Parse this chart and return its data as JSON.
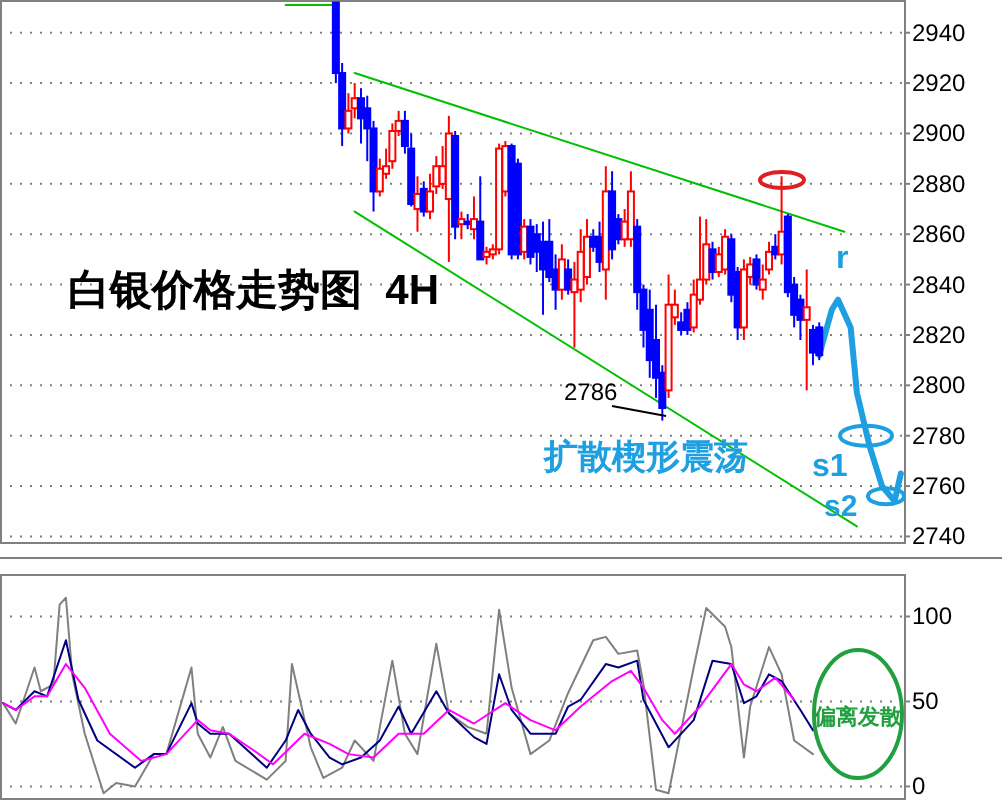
{
  "chart_data": [
    {
      "type": "candlestick",
      "title": "白银价格走势图  4H",
      "categories": [
        null,
        null,
        null,
        null,
        null,
        null,
        null,
        null,
        null,
        null,
        null,
        null,
        null,
        null,
        null,
        null,
        null,
        null,
        null,
        null,
        null,
        null,
        null,
        null,
        null,
        null,
        null,
        null,
        null,
        null,
        null,
        null,
        null,
        null,
        null,
        null,
        null,
        null,
        null,
        null,
        null,
        null,
        null,
        null,
        null,
        null,
        null,
        null,
        null,
        null,
        null,
        null,
        null,
        null,
        null,
        null,
        null,
        null,
        null,
        null,
        null,
        null,
        null,
        null,
        null,
        null,
        null,
        null,
        null,
        null,
        null,
        null,
        null,
        null,
        null,
        null,
        null,
        null,
        null,
        null,
        null,
        null,
        null,
        null,
        null,
        null,
        null,
        null,
        null,
        null,
        null,
        null,
        null,
        null,
        null,
        null,
        null,
        null,
        null,
        null,
        null,
        null,
        null,
        null,
        null,
        null,
        null,
        null,
        null,
        null,
        null,
        null,
        null,
        null,
        null,
        null,
        null,
        null,
        null,
        null,
        null,
        null,
        null,
        null,
        null,
        null,
        null,
        null,
        null,
        null,
        null,
        null,
        null,
        null,
        null,
        null,
        null,
        null,
        null,
        null,
        null,
        null,
        null,
        null
      ],
      "series": [
        {
          "ohlc": [
            null,
            null,
            null,
            null,
            null,
            null,
            null,
            null,
            null,
            null,
            null,
            null,
            null,
            null,
            null,
            null,
            null,
            null,
            null,
            null,
            null,
            null,
            null,
            null,
            null,
            null,
            null,
            null,
            null,
            null,
            null,
            null,
            null,
            null,
            null,
            null,
            null,
            null,
            null,
            null,
            null,
            null,
            null,
            null,
            null,
            null,
            null,
            null,
            null,
            null,
            null,
            null,
            null,
            [
              2952,
              2952,
              2920,
              2924
            ],
            [
              2924,
              2928,
              2895,
              2902
            ],
            [
              2902,
              2916,
              2900,
              2909
            ],
            [
              2910,
              2920,
              2906,
              2914
            ],
            [
              2914,
              2918,
              2896,
              2906
            ],
            [
              2910,
              2915,
              2889,
              2902
            ],
            [
              2902,
              2905,
              2869,
              2877
            ],
            [
              2877,
              2890,
              2875,
              2886
            ],
            [
              2884,
              2894,
              2882,
              2887
            ],
            [
              2889,
              2904,
              2886,
              2901
            ],
            [
              2901,
              2909,
              2899,
              2905
            ],
            [
              2905,
              2909,
              2892,
              2895
            ],
            [
              2894,
              2900,
              2871,
              2872
            ],
            [
              2870,
              2883,
              2861,
              2876
            ],
            [
              2878,
              2881,
              2867,
              2869
            ],
            [
              2869,
              2884,
              2866,
              2877
            ],
            [
              2879,
              2891,
              2876,
              2887
            ],
            [
              2880,
              2895,
              2878,
              2887
            ],
            [
              2874,
              2907,
              2849,
              2900
            ],
            [
              2899,
              2901,
              2858,
              2863
            ],
            [
              2864,
              2869,
              2858,
              2866
            ],
            [
              2865,
              2868,
              2862,
              2864
            ],
            [
              2862,
              2875,
              2858,
              2866
            ],
            [
              2865,
              2883,
              2850,
              2850
            ],
            [
              2851,
              2855,
              2848,
              2853
            ],
            [
              2852,
              2856,
              2850,
              2854
            ],
            [
              2854,
              2896,
              2852,
              2894
            ],
            [
              2877,
              2897,
              2875,
              2895
            ],
            [
              2895,
              2896,
              2850,
              2852
            ],
            [
              2888,
              2890,
              2850,
              2852
            ],
            [
              2853,
              2866,
              2850,
              2863
            ],
            [
              2863,
              2866,
              2848,
              2851
            ],
            [
              2860,
              2864,
              2845,
              2853
            ],
            [
              2857,
              2865,
              2828,
              2846
            ],
            [
              2857,
              2866,
              2841,
              2843
            ],
            [
              2846,
              2852,
              2830,
              2838
            ],
            [
              2838,
              2856,
              2834,
              2850
            ],
            [
              2846,
              2850,
              2836,
              2838
            ],
            [
              2837,
              2849,
              2815,
              2842
            ],
            [
              2838,
              2862,
              2833,
              2853
            ],
            [
              2843,
              2866,
              2840,
              2859
            ],
            [
              2859,
              2862,
              2853,
              2855
            ],
            [
              2859,
              2865,
              2845,
              2849
            ],
            [
              2846,
              2887,
              2834,
              2877
            ],
            [
              2877,
              2885,
              2850,
              2854
            ],
            [
              2866,
              2868,
              2856,
              2858
            ],
            [
              2858,
              2870,
              2855,
              2865
            ],
            [
              2858,
              2885,
              2855,
              2877
            ],
            [
              2863,
              2866,
              2830,
              2837
            ],
            [
              2838,
              2840,
              2815,
              2822
            ],
            [
              2830,
              2838,
              2803,
              2810
            ],
            [
              2818,
              2832,
              2795,
              2803
            ],
            [
              2805,
              2808,
              2786,
              2791
            ],
            [
              2798,
              2844,
              2795,
              2832
            ],
            [
              2827,
              2838,
              2824,
              2832
            ],
            [
              2825,
              2829,
              2820,
              2822
            ],
            [
              2830,
              2833,
              2820,
              2822
            ],
            [
              2823,
              2842,
              2821,
              2836
            ],
            [
              2834,
              2867,
              2832,
              2842
            ],
            [
              2842,
              2866,
              2840,
              2856
            ],
            [
              2854,
              2857,
              2842,
              2845
            ],
            [
              2845,
              2855,
              2843,
              2852
            ],
            [
              2846,
              2862,
              2844,
              2859
            ],
            [
              2858,
              2860,
              2833,
              2836
            ],
            [
              2845,
              2847,
              2818,
              2823
            ],
            [
              2823,
              2850,
              2818,
              2846
            ],
            [
              2843,
              2851,
              2840,
              2848
            ],
            [
              2850,
              2852,
              2838,
              2840
            ],
            [
              2838,
              2848,
              2834,
              2842
            ],
            [
              2846,
              2857,
              2844,
              2853
            ],
            [
              2855,
              2860,
              2850,
              2852
            ],
            [
              2852,
              2883,
              2848,
              2861
            ],
            [
              2867,
              2868,
              2835,
              2837
            ],
            [
              2840,
              2843,
              2823,
              2828
            ],
            [
              2834,
              2836,
              2818,
              2826
            ],
            [
              2826,
              2846,
              2798,
              2831
            ],
            [
              2822,
              2824,
              2808,
              2813
            ],
            [
              2823,
              2825,
              2810,
              2812
            ],
            null,
            null,
            null,
            null,
            null,
            null,
            null,
            null,
            null,
            null,
            null,
            null,
            null
          ],
          "colors": [
            null,
            null,
            null,
            null,
            null,
            null,
            null,
            null,
            null,
            null,
            null,
            null,
            null,
            null,
            null,
            null,
            null,
            null,
            null,
            null,
            null,
            null,
            null,
            null,
            null,
            null,
            null,
            null,
            null,
            null,
            null,
            null,
            null,
            null,
            null,
            null,
            null,
            null,
            null,
            null,
            null,
            null,
            null,
            null,
            null,
            null,
            null,
            null,
            null,
            null,
            null,
            null,
            null,
            "#0000ff",
            "#0000ff",
            "#ff0000",
            "#ff0000",
            "#0000ff",
            "#0000ff",
            "#0000ff",
            "#ff0000",
            "#ff0000",
            "#ff0000",
            "#ff0000",
            "#0000ff",
            "#0000ff",
            "#ff0000",
            "#0000ff",
            "#ff0000",
            "#ff0000",
            "#ff0000",
            "#ff0000",
            "#0000ff",
            "#ff0000",
            "#0000ff",
            "#ff0000",
            "#0000ff",
            "#ff0000",
            "#ff0000",
            "#ff0000",
            "#ff0000",
            "#0000ff",
            "#0000ff",
            "#ff0000",
            "#0000ff",
            "#0000ff",
            "#0000ff",
            "#0000ff",
            "#0000ff",
            "#ff0000",
            "#0000ff",
            "#ff0000",
            "#ff0000",
            "#ff0000",
            "#0000ff",
            "#0000ff",
            "#ff0000",
            "#0000ff",
            "#0000ff",
            "#ff0000",
            "#ff0000",
            "#0000ff",
            "#0000ff",
            "#0000ff",
            "#0000ff",
            "#0000ff",
            "#ff0000",
            "#ff0000",
            "#0000ff",
            "#0000ff",
            "#ff0000",
            "#ff0000",
            "#ff0000",
            "#0000ff",
            "#ff0000",
            "#ff0000",
            "#0000ff",
            "#0000ff",
            "#ff0000",
            "#ff0000",
            "#0000ff",
            "#ff0000",
            "#ff0000",
            "#0000ff",
            "#ff0000",
            "#0000ff",
            "#0000ff",
            "#0000ff",
            "#ff0000",
            "#0000ff",
            "#0000ff",
            null,
            null,
            null,
            null,
            null,
            null,
            null,
            null,
            null,
            null,
            null,
            null,
            null
          ]
        },
        {
          "type": "line",
          "color": "#00c000",
          "values": [
            null,
            null,
            null,
            null,
            null,
            null,
            null,
            null,
            null,
            null,
            null,
            null,
            null,
            null,
            null,
            null,
            null,
            null,
            null,
            null,
            null,
            null,
            null,
            null,
            null,
            null,
            null,
            null,
            null,
            null,
            null,
            null,
            null,
            null,
            null,
            null,
            null,
            null,
            null,
            null,
            null,
            null,
            null,
            null,
            null,
            null,
            null,
            null,
            null,
            null,
            null,
            null,
            null,
            null,
            null,
            null,
            2924,
            null,
            null,
            null,
            null,
            null,
            null,
            null,
            null,
            null,
            null,
            null,
            null,
            null,
            null,
            null,
            null,
            null,
            null,
            null,
            null,
            null,
            null,
            null,
            null,
            null,
            null,
            null,
            null,
            null,
            null,
            null,
            null,
            null,
            null,
            null,
            null,
            null,
            null,
            null,
            null,
            null,
            null,
            null,
            null,
            null,
            null,
            null,
            null,
            null,
            null,
            null,
            null,
            null,
            null,
            null,
            null,
            null,
            null,
            null,
            null,
            null,
            null,
            null,
            null,
            null,
            null,
            null,
            null,
            null,
            null,
            null,
            null,
            null,
            null,
            null,
            null,
            null,
            2861,
            null,
            null,
            null,
            null,
            null,
            null,
            null,
            null,
            null
          ]
        },
        {
          "type": "line",
          "color": "#00c000",
          "values": [
            null,
            null,
            null,
            null,
            null,
            null,
            null,
            null,
            null,
            null,
            null,
            null,
            null,
            null,
            null,
            null,
            null,
            null,
            null,
            null,
            null,
            null,
            null,
            null,
            null,
            null,
            null,
            null,
            null,
            null,
            null,
            null,
            null,
            null,
            null,
            null,
            null,
            null,
            null,
            null,
            null,
            null,
            null,
            null,
            null,
            null,
            null,
            null,
            null,
            null,
            null,
            null,
            null,
            null,
            null,
            null,
            2869,
            null,
            null,
            null,
            null,
            null,
            null,
            null,
            null,
            null,
            null,
            null,
            null,
            null,
            null,
            null,
            null,
            null,
            null,
            null,
            null,
            null,
            null,
            null,
            null,
            null,
            null,
            null,
            null,
            null,
            null,
            null,
            null,
            null,
            null,
            null,
            null,
            null,
            null,
            null,
            null,
            null,
            null,
            null,
            null,
            null,
            null,
            null,
            null,
            null,
            null,
            null,
            null,
            null,
            null,
            null,
            null,
            null,
            null,
            null,
            null,
            null,
            null,
            null,
            null,
            null,
            null,
            null,
            null,
            null,
            null,
            null,
            null,
            null,
            null,
            null,
            null,
            null,
            null,
            null,
            2744,
            null,
            null,
            null,
            null,
            null,
            null,
            null
          ]
        },
        {
          "type": "line",
          "color": "#00c000",
          "values": [
            null,
            null,
            null,
            null,
            null,
            null,
            null,
            null,
            null,
            null,
            null,
            null,
            null,
            null,
            null,
            null,
            null,
            null,
            null,
            null,
            null,
            null,
            null,
            null,
            null,
            null,
            null,
            null,
            null,
            null,
            null,
            null,
            null,
            null,
            null,
            null,
            null,
            null,
            null,
            null,
            null,
            null,
            null,
            null,
            null,
            2951,
            null,
            null,
            null,
            null,
            null,
            null,
            null,
            2951,
            null,
            null,
            null,
            null,
            null,
            null,
            null,
            null,
            null,
            null,
            null,
            null,
            null,
            null,
            null,
            null,
            null,
            null,
            null,
            null,
            null,
            null,
            null,
            null,
            null,
            null,
            null,
            null,
            null,
            null,
            null,
            null,
            null,
            null,
            null,
            null,
            null,
            null,
            null,
            null,
            null,
            null,
            null,
            null,
            null,
            null,
            null,
            null,
            null,
            null,
            null,
            null,
            null,
            null,
            null,
            null,
            null,
            null,
            null,
            null,
            null,
            null,
            null,
            null,
            null,
            null,
            null,
            null,
            null,
            null,
            null,
            null,
            null,
            null,
            null,
            null,
            null,
            null,
            null,
            null,
            null,
            null,
            null,
            null,
            null,
            null,
            null,
            null,
            null,
            null
          ]
        },
        {
          "type": "line",
          "color": "#1e9fe0",
          "values": [
            null,
            null,
            null,
            null,
            null,
            null,
            null,
            null,
            null,
            null,
            null,
            null,
            null,
            null,
            null,
            null,
            null,
            null,
            null,
            null,
            null,
            null,
            null,
            null,
            null,
            null,
            null,
            null,
            null,
            null,
            null,
            null,
            null,
            null,
            null,
            null,
            null,
            null,
            null,
            null,
            null,
            null,
            null,
            null,
            null,
            null,
            null,
            null,
            null,
            null,
            null,
            null,
            null,
            null,
            null,
            null,
            null,
            null,
            null,
            null,
            null,
            null,
            null,
            null,
            null,
            null,
            null,
            null,
            null,
            null,
            null,
            null,
            null,
            null,
            null,
            null,
            null,
            null,
            null,
            null,
            null,
            null,
            null,
            null,
            null,
            null,
            null,
            null,
            null,
            null,
            null,
            null,
            null,
            null,
            null,
            null,
            null,
            null,
            null,
            null,
            null,
            null,
            null,
            null,
            null,
            null,
            null,
            null,
            null,
            null,
            null,
            null,
            null,
            null,
            null,
            null,
            null,
            null,
            null,
            null,
            null,
            null,
            null,
            null,
            null,
            null,
            null,
            null,
            null,
            null,
            2812,
            null,
            2830,
            2834,
            null,
            2823,
            2797,
            null,
            2776,
            null,
            2760,
            null,
            2754,
            2765
          ]
        }
      ],
      "ylim": [
        2737,
        2953
      ],
      "yticks": [
        2740,
        2760,
        2780,
        2800,
        2820,
        2840,
        2860,
        2880,
        2900,
        2920,
        2940
      ],
      "grid": "y",
      "tick_labels": "y",
      "annotations": [
        "2786",
        "扩散楔形震荡",
        "r",
        "s1",
        "s2"
      ]
    },
    {
      "type": "line",
      "categories": [
        null,
        null,
        null,
        null,
        null,
        null,
        null,
        null,
        null,
        null,
        null,
        null,
        null,
        null,
        null,
        null,
        null,
        null,
        null,
        null,
        null,
        null,
        null,
        null,
        null,
        null,
        null,
        null,
        null,
        null,
        null,
        null,
        null,
        null,
        null,
        null,
        null,
        null,
        null,
        null,
        null,
        null,
        null,
        null,
        null,
        null,
        null,
        null,
        null,
        null,
        null,
        null,
        null,
        null,
        null,
        null,
        null,
        null,
        null,
        null,
        null,
        null,
        null,
        null,
        null,
        null,
        null,
        null,
        null,
        null,
        null,
        null,
        null,
        null,
        null,
        null,
        null,
        null,
        null,
        null,
        null,
        null,
        null,
        null,
        null,
        null,
        null,
        null,
        null,
        null,
        null,
        null,
        null,
        null,
        null,
        null,
        null,
        null,
        null,
        null,
        null,
        null,
        null,
        null,
        null,
        null,
        null,
        null,
        null,
        null,
        null,
        null,
        null,
        null,
        null,
        null,
        null,
        null,
        null,
        null,
        null,
        null,
        null,
        null,
        null,
        null,
        null,
        null,
        null,
        null,
        null,
        null,
        null,
        null,
        null,
        null,
        null,
        null,
        null,
        null,
        null,
        null,
        null,
        null
      ],
      "series": [
        {
          "color": "#808080",
          "values": [
            49,
            null,
            37,
            null,
            null,
            70,
            56,
            null,
            60,
            107,
            111,
            66,
            null,
            31,
            null,
            null,
            -4,
            null,
            2,
            null,
            null,
            0,
            null,
            null,
            19,
            null,
            19,
            null,
            null,
            null,
            70,
            31,
            null,
            17,
            null,
            35,
            null,
            15,
            null,
            null,
            null,
            null,
            4,
            null,
            null,
            15,
            72,
            null,
            null,
            23,
            null,
            5,
            null,
            null,
            11,
            null,
            27,
            null,
            null,
            15,
            null,
            null,
            74,
            null,
            31,
            null,
            19,
            null,
            null,
            84,
            null,
            43,
            null,
            null,
            35,
            null,
            null,
            31,
            null,
            104,
            null,
            58,
            null,
            null,
            19,
            null,
            null,
            27,
            null,
            null,
            55,
            null,
            null,
            null,
            86,
            null,
            88,
            null,
            78,
            null,
            null,
            80,
            60,
            null,
            -2,
            null,
            -4,
            null,
            null,
            null,
            70,
            null,
            105,
            null,
            null,
            94,
            82,
            null,
            17,
            47,
            null,
            null,
            82,
            null,
            66,
            null,
            27,
            null,
            null,
            19,
            null,
            null,
            null,
            null,
            null,
            null,
            null,
            null,
            null,
            null,
            null,
            null,
            null,
            null
          ]
        },
        {
          "color": "#000080",
          "values": [
            49,
            null,
            45,
            null,
            null,
            56,
            null,
            53,
            null,
            null,
            86,
            null,
            51,
            null,
            null,
            27,
            null,
            null,
            null,
            null,
            null,
            11,
            null,
            null,
            19,
            null,
            19,
            null,
            null,
            null,
            49,
            37,
            null,
            31,
            null,
            null,
            31,
            null,
            null,
            null,
            null,
            null,
            11,
            null,
            null,
            27,
            null,
            45,
            null,
            31,
            null,
            null,
            17,
            null,
            13,
            null,
            null,
            17,
            null,
            null,
            27,
            null,
            null,
            47,
            null,
            31,
            null,
            null,
            null,
            56,
            null,
            43,
            null,
            null,
            null,
            29,
            null,
            25,
            null,
            66,
            null,
            45,
            null,
            null,
            31,
            null,
            null,
            null,
            31,
            null,
            47,
            null,
            51,
            null,
            null,
            null,
            72,
            null,
            70,
            null,
            null,
            74,
            51,
            null,
            null,
            null,
            23,
            null,
            null,
            null,
            39,
            null,
            null,
            74,
            null,
            null,
            72,
            null,
            49,
            null,
            53,
            null,
            66,
            null,
            62,
            null,
            null,
            45,
            null,
            33,
            null,
            null,
            null,
            null,
            null,
            null,
            null,
            null,
            null,
            null,
            null,
            null,
            null,
            null
          ]
        },
        {
          "color": "#ff00ff",
          "values": [
            49,
            null,
            45,
            null,
            null,
            53,
            null,
            53,
            null,
            null,
            72,
            null,
            null,
            58,
            null,
            null,
            null,
            31,
            null,
            null,
            null,
            null,
            15,
            null,
            null,
            null,
            19,
            null,
            null,
            null,
            null,
            39,
            null,
            33,
            null,
            null,
            31,
            null,
            null,
            null,
            21,
            null,
            null,
            13,
            null,
            null,
            null,
            null,
            31,
            null,
            null,
            null,
            25,
            null,
            null,
            19,
            null,
            null,
            null,
            17,
            null,
            null,
            null,
            31,
            null,
            null,
            null,
            31,
            null,
            null,
            null,
            45,
            null,
            null,
            null,
            37,
            null,
            null,
            null,
            null,
            49,
            null,
            null,
            null,
            39,
            null,
            null,
            null,
            33,
            null,
            null,
            null,
            47,
            null,
            null,
            null,
            null,
            62,
            null,
            null,
            68,
            null,
            58,
            null,
            null,
            39,
            null,
            31,
            null,
            null,
            null,
            47,
            null,
            null,
            null,
            null,
            72,
            null,
            60,
            null,
            56,
            null,
            null,
            64,
            null,
            null,
            51,
            null,
            null,
            null,
            null,
            null,
            null,
            null,
            null,
            null,
            null,
            null,
            null,
            null,
            null,
            null,
            null,
            null
          ]
        }
      ],
      "ylim": [
        -8,
        125
      ],
      "yticks": [
        0,
        50,
        100
      ],
      "grid": "y",
      "tick_labels": "y",
      "annotations": [
        "偏离发散"
      ]
    }
  ]
}
